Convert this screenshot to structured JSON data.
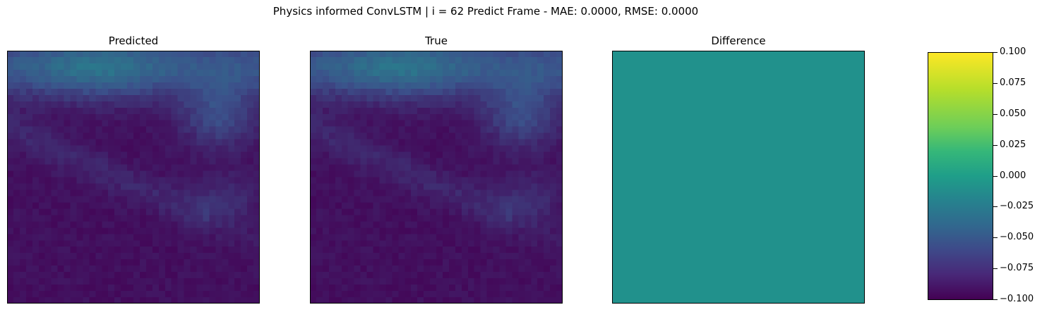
{
  "chart_data": {
    "type": "heatmap",
    "title": "Physics informed ConvLSTM | i = 62 Predict Frame - MAE: 0.0000, RMSE: 0.0000",
    "grid": false,
    "panels": [
      {
        "title": "Predicted",
        "rows": 40,
        "cols": 40,
        "value_range": [
          0,
          1
        ],
        "description_values": "low intensity field, brighter band top, faint diagonal band middle"
      },
      {
        "title": "True",
        "rows": 40,
        "cols": 40,
        "value_range": [
          0,
          1
        ]
      },
      {
        "title": "Difference",
        "rows": 1,
        "cols": 1,
        "values": [
          [
            0.0
          ]
        ]
      }
    ],
    "colorbar": {
      "colormap": "viridis",
      "vmin": -0.1,
      "vmax": 0.1,
      "tick_labels": [
        "0.100",
        "0.075",
        "0.050",
        "0.025",
        "0.000",
        "−0.025",
        "−0.050",
        "−0.075",
        "−0.100"
      ],
      "tick_values": [
        0.1,
        0.075,
        0.05,
        0.025,
        0.0,
        -0.025,
        -0.05,
        -0.075,
        -0.1
      ]
    }
  }
}
